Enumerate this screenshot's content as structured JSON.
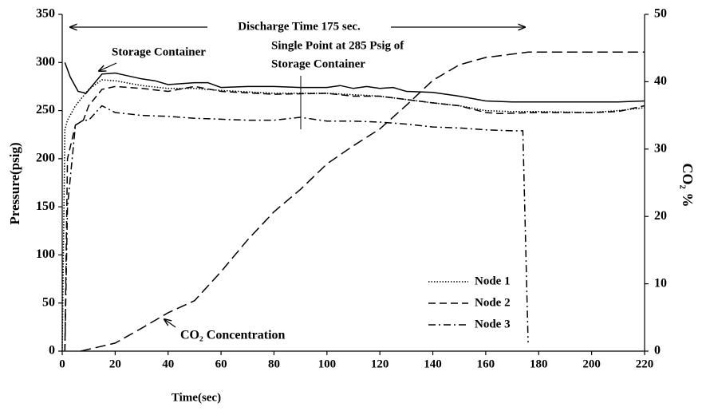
{
  "chart_data": {
    "type": "line",
    "xlabel": "Time(sec)",
    "ylabel": "Pressure(psig)",
    "y2label": "CO₂ %",
    "xlim": [
      0,
      220
    ],
    "xticks": [
      0,
      20,
      40,
      60,
      80,
      100,
      120,
      140,
      160,
      180,
      200,
      220
    ],
    "ylim": [
      0,
      350
    ],
    "yticks": [
      0,
      50,
      100,
      150,
      200,
      250,
      300,
      350
    ],
    "y2lim": [
      0,
      50
    ],
    "y2ticks": [
      0,
      10,
      20,
      30,
      40,
      50
    ],
    "legend": "lower right",
    "annotations": [
      "Discharge Time 175 sec.",
      "Storage Container",
      "Single Point at 285 Psig of",
      "Storage Container",
      "CO₂ Concentration"
    ],
    "series": [
      {
        "color": "#000",
        "style": "solid",
        "x": [
          1,
          3,
          6,
          9,
          12,
          15,
          20,
          25,
          30,
          35,
          40,
          50,
          55,
          60,
          70,
          80,
          90,
          100,
          105,
          110,
          115,
          120,
          125,
          130,
          140,
          150,
          160,
          170,
          180,
          190,
          200,
          210,
          220
        ],
        "values": [
          300,
          285,
          270,
          268,
          278,
          288,
          289,
          286,
          283,
          281,
          277,
          279,
          279,
          274,
          275,
          275,
          274,
          274,
          276,
          273,
          275,
          273,
          274,
          270,
          269,
          265,
          260,
          259,
          259,
          259,
          259,
          259,
          260
        ]
      },
      {
        "name": "Node 1",
        "color": "#000",
        "style": "dotted",
        "x": [
          0,
          1,
          2,
          5,
          10,
          15,
          20,
          30,
          40,
          50,
          60,
          80,
          100,
          120,
          140,
          150,
          160,
          170,
          180,
          200,
          210,
          220
        ],
        "values": [
          0,
          230,
          240,
          255,
          272,
          282,
          281,
          276,
          273,
          273,
          271,
          268,
          268,
          265,
          258,
          255,
          250,
          249,
          249,
          248,
          250,
          253
        ]
      },
      {
        "name": "Node 2",
        "color": "#000",
        "style": "dashed",
        "x": [
          1,
          2,
          5,
          8,
          10,
          15,
          20,
          30,
          40,
          50,
          60,
          80,
          100,
          110,
          120,
          140,
          150,
          160,
          165,
          180,
          200,
          210,
          220
        ],
        "values": [
          0,
          200,
          235,
          240,
          255,
          272,
          275,
          273,
          270,
          275,
          270,
          267,
          268,
          265,
          265,
          258,
          255,
          248,
          247,
          248,
          248,
          249,
          255
        ]
      },
      {
        "name": "Node 3",
        "color": "#000",
        "style": "dashdot",
        "x": [
          1,
          2,
          5,
          8,
          10,
          15,
          20,
          30,
          40,
          50,
          60,
          70,
          80,
          90,
          100,
          110,
          120,
          130,
          140,
          150,
          160,
          170,
          174,
          176
        ],
        "values": [
          0,
          150,
          235,
          240,
          240,
          255,
          248,
          245,
          244,
          242,
          241,
          240,
          240,
          243,
          239,
          239,
          238,
          236,
          233,
          232,
          230,
          229,
          229,
          9
        ]
      },
      {
        "color": "#000",
        "style": "longdash",
        "axis": "y2",
        "x": [
          7,
          20,
          30,
          40,
          50,
          60,
          70,
          80,
          90,
          100,
          110,
          120,
          130,
          140,
          150,
          160,
          170,
          176,
          220
        ],
        "values": [
          0,
          1.2,
          3.4,
          5.7,
          7.5,
          11.8,
          16.5,
          20.7,
          24,
          27.8,
          30.5,
          33,
          36.5,
          40.2,
          42.5,
          43.6,
          44.1,
          44.4,
          44.4
        ]
      }
    ]
  }
}
